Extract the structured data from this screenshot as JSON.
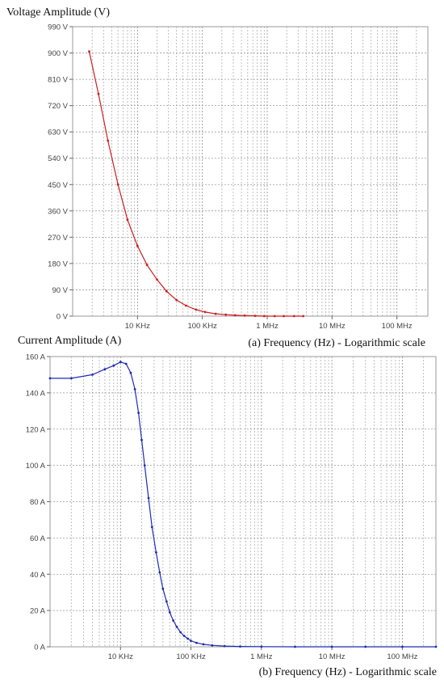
{
  "chart_data": [
    {
      "type": "line",
      "ylabel": "Voltage Amplitude (V)",
      "caption": "(a)   Frequency (Hz) - Logarithmic scale",
      "xscale": "log",
      "xlim": [
        1000,
        300000000
      ],
      "ylim": [
        0,
        990
      ],
      "yticks": [
        {
          "value": 0,
          "label": "0 V"
        },
        {
          "value": 90,
          "label": "90 V"
        },
        {
          "value": 180,
          "label": "180 V"
        },
        {
          "value": 270,
          "label": "270 V"
        },
        {
          "value": 360,
          "label": "360 V"
        },
        {
          "value": 450,
          "label": "450 V"
        },
        {
          "value": 540,
          "label": "540 V"
        },
        {
          "value": 630,
          "label": "630 V"
        },
        {
          "value": 720,
          "label": "720 V"
        },
        {
          "value": 810,
          "label": "810 V"
        },
        {
          "value": 900,
          "label": "900 V"
        },
        {
          "value": 990,
          "label": "990 V"
        }
      ],
      "xticks": [
        {
          "value": 10000,
          "label": "10 KHz"
        },
        {
          "value": 100000,
          "label": "100 KHz"
        },
        {
          "value": 1000000,
          "label": "1 MHz"
        },
        {
          "value": 10000000,
          "label": "10 MHz"
        },
        {
          "value": 100000000,
          "label": "100 MHz"
        }
      ],
      "grid": true,
      "color": "#cc1f1f",
      "series": [
        {
          "x": [
            1800,
            2500,
            3500,
            5000,
            7000,
            10000,
            14000,
            20000,
            28000,
            40000,
            56000,
            80000,
            110000,
            160000,
            230000,
            320000,
            450000,
            650000,
            900000,
            1300000,
            1800000,
            2600000,
            3600000
          ],
          "values": [
            905,
            760,
            600,
            450,
            330,
            240,
            175,
            125,
            85,
            55,
            36,
            22,
            14,
            8,
            5,
            3,
            2,
            1,
            0,
            0,
            0,
            0,
            0
          ]
        }
      ]
    },
    {
      "type": "line",
      "ylabel": "Current Amplitude (A)",
      "caption": "(b)   Frequency (Hz) - Logarithmic scale",
      "xscale": "log",
      "xlim": [
        1000,
        300000000
      ],
      "ylim": [
        0,
        160
      ],
      "yticks": [
        {
          "value": 0,
          "label": "0 A"
        },
        {
          "value": 20,
          "label": "20 A"
        },
        {
          "value": 40,
          "label": "40 A"
        },
        {
          "value": 60,
          "label": "60 A"
        },
        {
          "value": 80,
          "label": "80 A"
        },
        {
          "value": 100,
          "label": "100 A"
        },
        {
          "value": 120,
          "label": "120 A"
        },
        {
          "value": 140,
          "label": "140 A"
        },
        {
          "value": 160,
          "label": "160 A"
        }
      ],
      "xticks": [
        {
          "value": 10000,
          "label": "10 KHz"
        },
        {
          "value": 100000,
          "label": "100 KHz"
        },
        {
          "value": 1000000,
          "label": "1 MHz"
        },
        {
          "value": 10000000,
          "label": "10 MHz"
        },
        {
          "value": 100000000,
          "label": "100 MHz"
        }
      ],
      "grid": true,
      "color": "#1f2bb3",
      "series": [
        {
          "x": [
            1000,
            2000,
            4000,
            6000,
            8000,
            10000,
            12000,
            14000,
            16000,
            18000,
            20000,
            22000,
            25000,
            28000,
            32000,
            36000,
            40000,
            45000,
            50000,
            56000,
            63000,
            71000,
            80000,
            90000,
            100000,
            120000,
            150000,
            200000,
            300000,
            500000,
            1000000,
            3000000,
            10000000,
            30000000,
            100000000,
            300000000
          ],
          "values": [
            148,
            148,
            150,
            153,
            155,
            157,
            156,
            151,
            142,
            129,
            114,
            100,
            82,
            66,
            52,
            41,
            32,
            25,
            19,
            14.5,
            11,
            8,
            6,
            4.5,
            3.3,
            2.2,
            1.4,
            0.8,
            0.4,
            0.2,
            0.1,
            0,
            0,
            0,
            0,
            0
          ]
        }
      ]
    }
  ]
}
